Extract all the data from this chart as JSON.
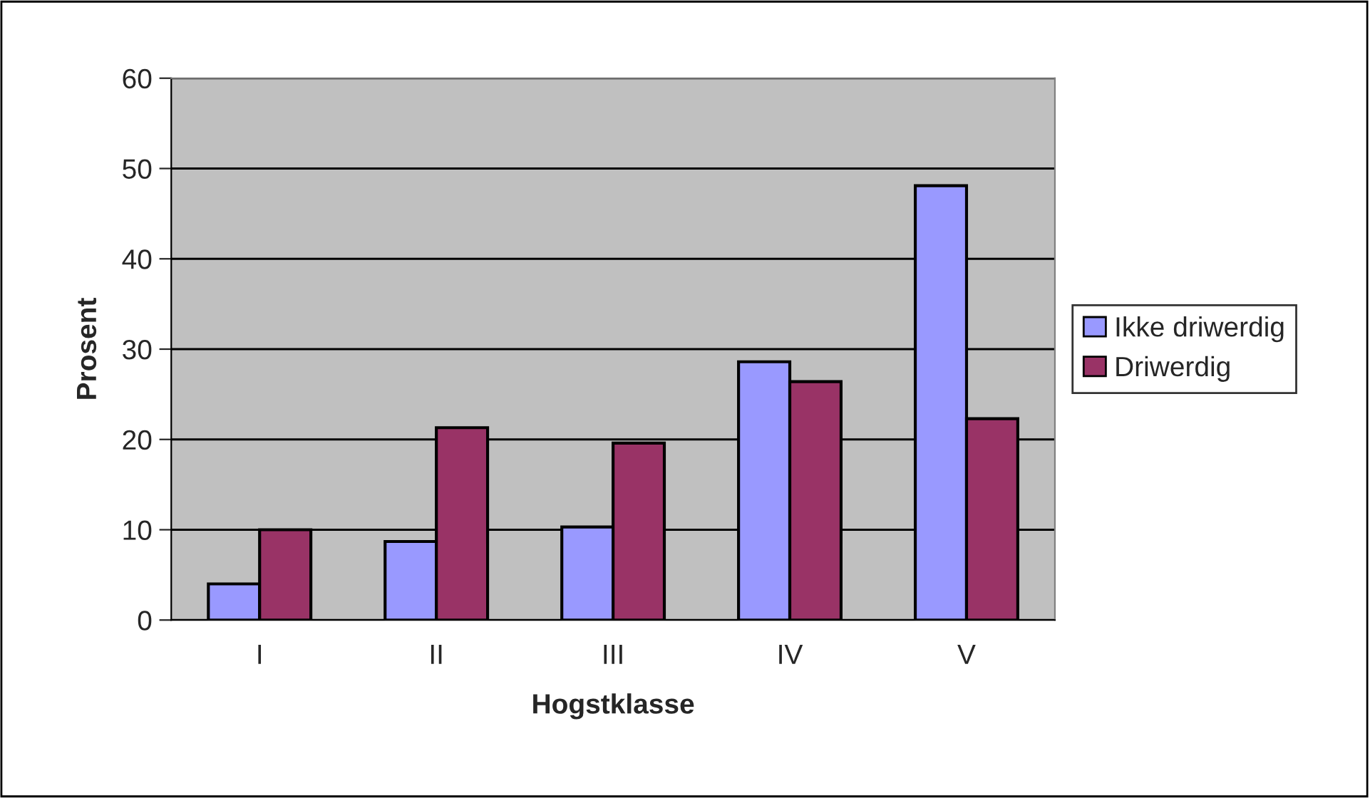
{
  "chart_data": {
    "type": "bar",
    "xlabel": "Hogstklasse",
    "ylabel": "Prosent",
    "categories": [
      "I",
      "II",
      "III",
      "IV",
      "V"
    ],
    "series": [
      {
        "name": "Ikke driwerdig",
        "color": "#9999ff",
        "values": [
          4.0,
          8.7,
          10.3,
          28.6,
          48.1
        ]
      },
      {
        "name": "Driwerdig",
        "color": "#993366",
        "values": [
          10.0,
          21.3,
          19.6,
          26.4,
          22.3
        ]
      }
    ],
    "ylim": [
      0,
      60
    ],
    "yticks": [
      0,
      10,
      20,
      30,
      40,
      50,
      60
    ],
    "grid": "y",
    "legend": "right"
  }
}
